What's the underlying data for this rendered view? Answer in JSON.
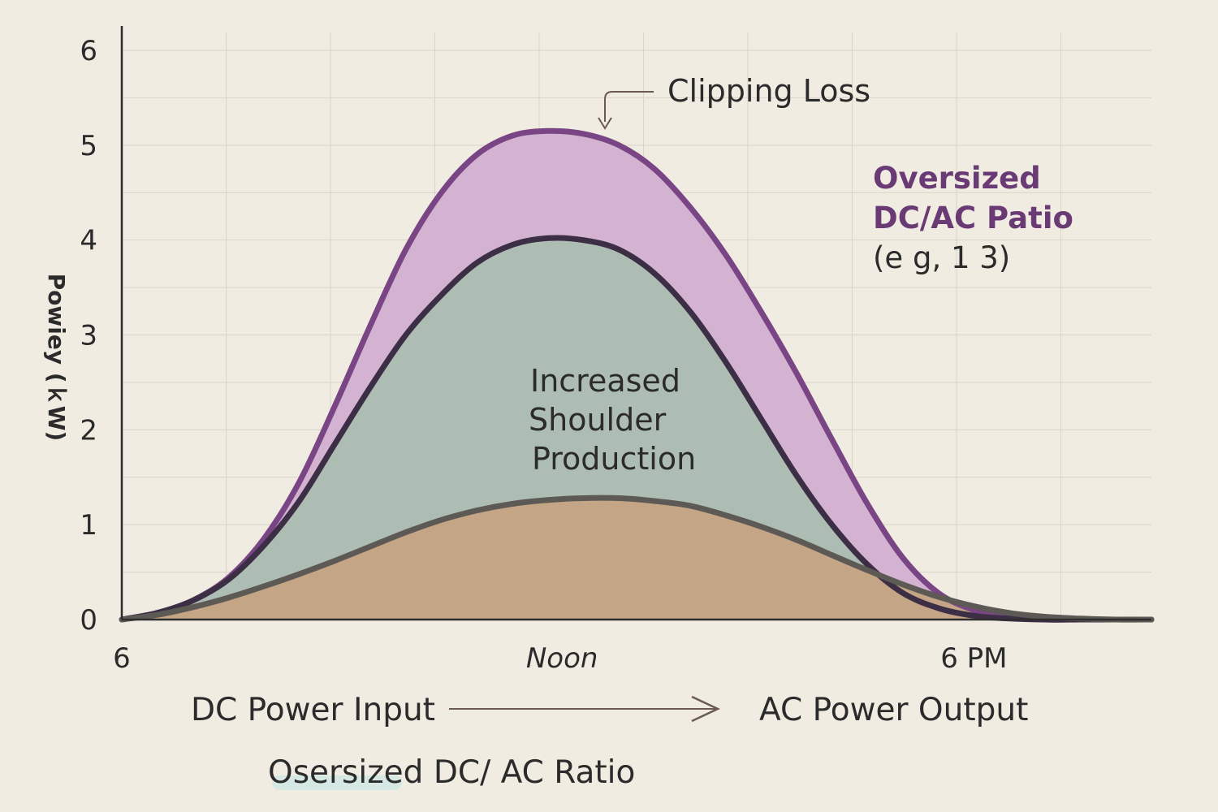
{
  "chart_data": {
    "type": "area",
    "title": "",
    "xlabel": "",
    "ylabel": "Powiey (ｋW)",
    "ylim": [
      0,
      6
    ],
    "xlim": [
      6,
      20.5
    ],
    "y_ticks": [
      "0",
      "1",
      "2",
      "3",
      "4",
      "5",
      "6"
    ],
    "x_tick_labels": [
      {
        "x": 6,
        "label": "6",
        "italic": false
      },
      {
        "x": 12.2,
        "label": "Noon",
        "italic": true
      },
      {
        "x": 18,
        "label": "6 PM",
        "italic": false
      }
    ],
    "grid": true,
    "series": [
      {
        "x": [
          6.0,
          6.5,
          7.0,
          7.5,
          8.0,
          8.5,
          9.0,
          9.5,
          10.0,
          10.5,
          11.0,
          11.5,
          12.0,
          12.5,
          13.0,
          13.5,
          14.0,
          14.5,
          15.0,
          15.5,
          16.0,
          16.5,
          17.0,
          17.5,
          18.0,
          18.5,
          19.0,
          19.5,
          20.0,
          20.5
        ],
        "values": [
          0.0,
          0.05,
          0.13,
          0.23,
          0.35,
          0.48,
          0.62,
          0.77,
          0.92,
          1.05,
          1.15,
          1.22,
          1.26,
          1.28,
          1.28,
          1.25,
          1.2,
          1.1,
          0.98,
          0.84,
          0.68,
          0.52,
          0.37,
          0.24,
          0.14,
          0.07,
          0.03,
          0.01,
          0.0,
          0.0
        ],
        "fill": "#c4a585",
        "stroke": "#5d5a55"
      },
      {
        "x": [
          6.0,
          6.5,
          7.0,
          7.5,
          8.0,
          8.5,
          9.0,
          9.5,
          10.0,
          10.5,
          11.0,
          11.5,
          12.0,
          12.5,
          13.0,
          13.5,
          14.0,
          14.5,
          15.0,
          15.5,
          16.0,
          16.5,
          17.0,
          17.5,
          18.0,
          18.5,
          19.0,
          19.5,
          20.0,
          20.5
        ],
        "values": [
          0.0,
          0.07,
          0.2,
          0.42,
          0.78,
          1.25,
          1.85,
          2.45,
          3.0,
          3.42,
          3.76,
          3.95,
          4.02,
          4.0,
          3.9,
          3.65,
          3.25,
          2.72,
          2.12,
          1.52,
          1.0,
          0.58,
          0.28,
          0.12,
          0.04,
          0.01,
          0.0,
          0.0,
          0.0,
          0.0
        ],
        "fill": "#aebdb3",
        "stroke": "#3c2f45"
      },
      {
        "x": [
          6.0,
          6.5,
          7.0,
          7.5,
          8.0,
          8.5,
          9.0,
          9.5,
          10.0,
          10.5,
          11.0,
          11.5,
          12.0,
          12.5,
          13.0,
          13.5,
          14.0,
          14.5,
          15.0,
          15.5,
          16.0,
          16.5,
          17.0,
          17.5,
          18.0,
          18.5,
          19.0,
          19.5,
          20.0,
          20.5
        ],
        "values": [
          0.0,
          0.07,
          0.2,
          0.44,
          0.85,
          1.45,
          2.25,
          3.1,
          3.9,
          4.5,
          4.9,
          5.1,
          5.15,
          5.12,
          5.0,
          4.75,
          4.35,
          3.85,
          3.25,
          2.6,
          1.9,
          1.22,
          0.65,
          0.28,
          0.1,
          0.03,
          0.0,
          0.0,
          0.0,
          0.0
        ],
        "fill": "#d3b3d1",
        "stroke": "#7a4584"
      }
    ],
    "annotations": {
      "clipping": "Clipping Loss",
      "shoulder": [
        "Increased",
        "Shoulder",
        "Production"
      ],
      "side_title": [
        "Oversized",
        "DC/AC Patio"
      ],
      "side_note": "(e g, 1 3)"
    },
    "footer": {
      "left": "DC Power Input",
      "right": "AC Power Output",
      "bottom": "Osersized DC/ AC Ratio"
    },
    "colors": {
      "background": "#f1ece2",
      "axis": "#2e2e2e",
      "grid": "#d9d3c8",
      "accent_purple": "#6a3a74",
      "arrow": "#6b5a52"
    }
  }
}
